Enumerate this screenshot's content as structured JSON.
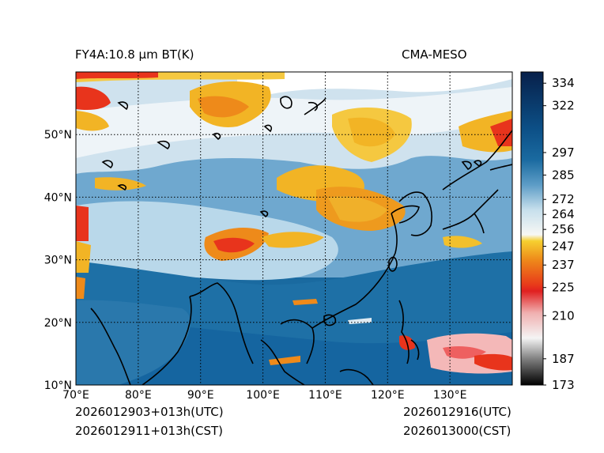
{
  "header": {
    "left_title": "FY4A:10.8 µm BT(K)",
    "right_title": "CMA-MESO"
  },
  "footer": {
    "left_line1": "2026012903+013h(UTC)",
    "left_line2": "2026012911+013h(CST)",
    "right_line1": "2026012916(UTC)",
    "right_line2": "2026013000(CST)"
  },
  "map": {
    "lon_range": [
      70,
      140
    ],
    "lat_range": [
      10,
      60
    ],
    "lon_ticks": [
      {
        "value": 70,
        "label": "70°E"
      },
      {
        "value": 80,
        "label": "80°E"
      },
      {
        "value": 90,
        "label": "90°E"
      },
      {
        "value": 100,
        "label": "100°E"
      },
      {
        "value": 110,
        "label": "110°E"
      },
      {
        "value": 120,
        "label": "120°E"
      },
      {
        "value": 130,
        "label": "130°E"
      }
    ],
    "lat_ticks": [
      {
        "value": 10,
        "label": "10°N"
      },
      {
        "value": 20,
        "label": "20°N"
      },
      {
        "value": 30,
        "label": "30°N"
      },
      {
        "value": 40,
        "label": "40°N"
      },
      {
        "value": 50,
        "label": "50°N"
      }
    ],
    "gridlines": "dotted"
  },
  "colorbar": {
    "range": [
      173,
      340
    ],
    "tick_labels": [
      "334",
      "322",
      "297",
      "285",
      "272",
      "264",
      "256",
      "247",
      "237",
      "225",
      "210",
      "187",
      "173"
    ],
    "tick_values": [
      334,
      322,
      297,
      285,
      272,
      264,
      256,
      247,
      237,
      225,
      210,
      187,
      173
    ]
  },
  "colors": {
    "deep_blue": "#0b3c6e",
    "ocean_blue": "#1a6aa0",
    "land_blue": "#5c9cc6",
    "light_blue": "#b9d8ea",
    "cloud_white": "#eef4f8",
    "cloud_yellow": "#f2c02c",
    "cloud_orange": "#ee8a1a",
    "cloud_red": "#e8341c",
    "coast": "#000000"
  }
}
